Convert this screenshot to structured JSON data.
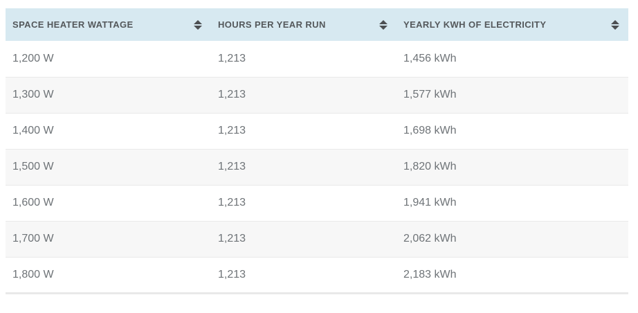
{
  "table": {
    "columns": [
      {
        "label": "SPACE HEATER WATTAGE",
        "sort_icon": "sort-arrows-icon"
      },
      {
        "label": "HOURS PER YEAR RUN",
        "sort_icon": "sort-arrows-icon"
      },
      {
        "label": "YEARLY KWH OF ELECTRICITY",
        "sort_icon": "sort-arrows-icon"
      }
    ],
    "rows": [
      {
        "wattage": "1,200 W",
        "hours": "1,213",
        "kwh": "1,456 kWh"
      },
      {
        "wattage": "1,300 W",
        "hours": "1,213",
        "kwh": "1,577 kWh"
      },
      {
        "wattage": "1,400 W",
        "hours": "1,213",
        "kwh": "1,698 kWh"
      },
      {
        "wattage": "1,500 W",
        "hours": "1,213",
        "kwh": "1,820 kWh"
      },
      {
        "wattage": "1,600 W",
        "hours": "1,213",
        "kwh": "1,941 kWh"
      },
      {
        "wattage": "1,700 W",
        "hours": "1,213",
        "kwh": "2,062 kWh"
      },
      {
        "wattage": "1,800 W",
        "hours": "1,213",
        "kwh": "2,183 kWh"
      }
    ]
  },
  "colors": {
    "header_bg": "#d7e9f1",
    "header_text": "#54585b",
    "sort_icon": "#4c4f52",
    "body_text": "#6e7377",
    "row_alt_bg": "#f7f7f7",
    "row_border": "#e9e9e9",
    "page_bg": "#ffffff"
  }
}
